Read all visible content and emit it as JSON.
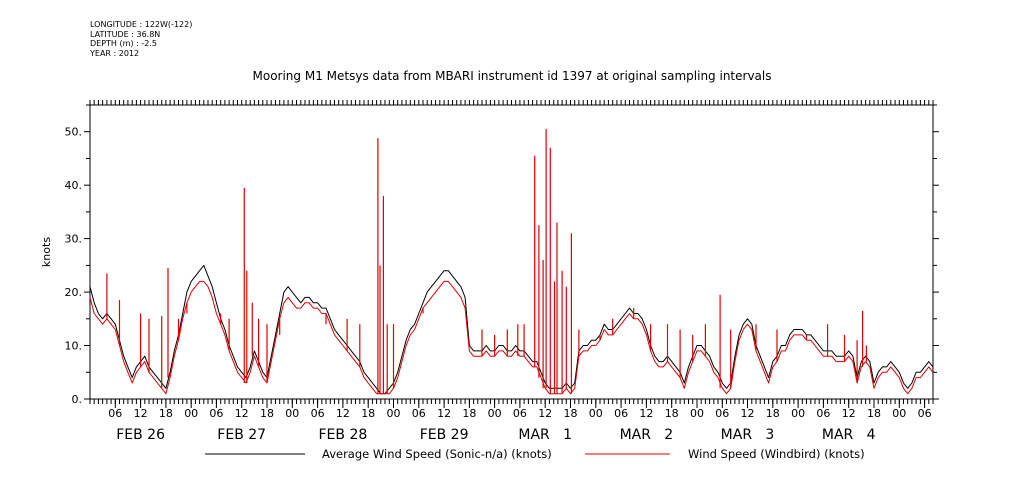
{
  "metadata": {
    "longitude": "LONGITUDE : 122W(-122)",
    "latitude": "LATITUDE : 36.8N",
    "depth": "DEPTH (m) : -2.5",
    "year": "YEAR : 2012"
  },
  "chart_data": {
    "type": "line",
    "title": "Mooring M1 Metsys data from MBARI instrument id 1397 at original sampling intervals",
    "ylabel": "knots",
    "xlabel": "",
    "ylim": [
      0,
      55
    ],
    "yticks": [
      0,
      10,
      20,
      30,
      40,
      50
    ],
    "ytick_labels": [
      "0.",
      "10.",
      "20.",
      "30.",
      "40.",
      "50."
    ],
    "xlim_hours": [
      0,
      200
    ],
    "x_units": "hours since 00:00 FEB 26 2012",
    "hour_ticks": [
      {
        "hour": 6,
        "label": "06"
      },
      {
        "hour": 12,
        "label": "12"
      },
      {
        "hour": 18,
        "label": "18"
      },
      {
        "hour": 24,
        "label": "00"
      },
      {
        "hour": 30,
        "label": "06"
      },
      {
        "hour": 36,
        "label": "12"
      },
      {
        "hour": 42,
        "label": "18"
      },
      {
        "hour": 48,
        "label": "00"
      },
      {
        "hour": 54,
        "label": "06"
      },
      {
        "hour": 60,
        "label": "12"
      },
      {
        "hour": 66,
        "label": "18"
      },
      {
        "hour": 72,
        "label": "00"
      },
      {
        "hour": 78,
        "label": "06"
      },
      {
        "hour": 84,
        "label": "12"
      },
      {
        "hour": 90,
        "label": "18"
      },
      {
        "hour": 96,
        "label": "00"
      },
      {
        "hour": 102,
        "label": "06"
      },
      {
        "hour": 108,
        "label": "12"
      },
      {
        "hour": 114,
        "label": "18"
      },
      {
        "hour": 120,
        "label": "00"
      },
      {
        "hour": 126,
        "label": "06"
      },
      {
        "hour": 132,
        "label": "12"
      },
      {
        "hour": 138,
        "label": "18"
      },
      {
        "hour": 144,
        "label": "00"
      },
      {
        "hour": 150,
        "label": "06"
      },
      {
        "hour": 156,
        "label": "12"
      },
      {
        "hour": 162,
        "label": "18"
      },
      {
        "hour": 168,
        "label": "00"
      },
      {
        "hour": 174,
        "label": "06"
      },
      {
        "hour": 180,
        "label": "12"
      },
      {
        "hour": 186,
        "label": "18"
      },
      {
        "hour": 192,
        "label": "00"
      },
      {
        "hour": 198,
        "label": "06"
      }
    ],
    "day_labels": [
      {
        "hour": 12,
        "label": "FEB 26"
      },
      {
        "hour": 36,
        "label": "FEB 27"
      },
      {
        "hour": 60,
        "label": "FEB 28"
      },
      {
        "hour": 84,
        "label": "FEB 29"
      },
      {
        "hour": 108,
        "label": "MAR   1"
      },
      {
        "hour": 132,
        "label": "MAR   2"
      },
      {
        "hour": 156,
        "label": "MAR   3"
      },
      {
        "hour": 180,
        "label": "MAR   4"
      }
    ],
    "series": [
      {
        "name": "Average Wind Speed (Sonic-n/a) (knots)",
        "color": "#000000",
        "x": [
          0,
          1,
          2,
          3,
          4,
          5,
          6,
          7,
          8,
          9,
          10,
          11,
          12,
          13,
          14,
          15,
          16,
          17,
          18,
          19,
          20,
          21,
          22,
          23,
          24,
          25,
          26,
          27,
          28,
          29,
          30,
          31,
          32,
          33,
          34,
          35,
          36,
          37,
          38,
          39,
          40,
          41,
          42,
          43,
          44,
          45,
          46,
          47,
          48,
          49,
          50,
          51,
          52,
          53,
          54,
          55,
          56,
          57,
          58,
          59,
          60,
          61,
          62,
          63,
          64,
          65,
          66,
          67,
          68,
          69,
          70,
          71,
          72,
          73,
          74,
          75,
          76,
          77,
          78,
          79,
          80,
          81,
          82,
          83,
          84,
          85,
          86,
          87,
          88,
          89,
          90,
          91,
          92,
          93,
          94,
          95,
          96,
          97,
          98,
          99,
          100,
          101,
          102,
          103,
          104,
          105,
          106,
          107,
          108,
          109,
          110,
          111,
          112,
          113,
          114,
          115,
          116,
          117,
          118,
          119,
          120,
          121,
          122,
          123,
          124,
          125,
          126,
          127,
          128,
          129,
          130,
          131,
          132,
          133,
          134,
          135,
          136,
          137,
          138,
          139,
          140,
          141,
          142,
          143,
          144,
          145,
          146,
          147,
          148,
          149,
          150,
          151,
          152,
          153,
          154,
          155,
          156,
          157,
          158,
          159,
          160,
          161,
          162,
          163,
          164,
          165,
          166,
          167,
          168,
          169,
          170,
          171,
          172,
          173,
          174,
          175,
          176,
          177,
          178,
          179,
          180,
          181,
          182,
          183,
          184,
          185,
          186,
          187,
          188,
          189,
          190,
          191,
          192,
          193,
          194,
          195,
          196,
          197,
          198,
          199,
          200
        ],
        "values": [
          21,
          18,
          16,
          15,
          16,
          15,
          14,
          11,
          8,
          6,
          4,
          6,
          7,
          8,
          6,
          5,
          4,
          3,
          2,
          5,
          9,
          12,
          16,
          20,
          22,
          23,
          24,
          25,
          23,
          21,
          18,
          15,
          13,
          10,
          8,
          6,
          5,
          4,
          6,
          9,
          7,
          5,
          4,
          8,
          12,
          16,
          20,
          21,
          20,
          19,
          18,
          19,
          19,
          18,
          18,
          17,
          17,
          15,
          13,
          12,
          11,
          10,
          9,
          8,
          7,
          5,
          4,
          3,
          2,
          1,
          1,
          2,
          3,
          5,
          8,
          11,
          13,
          14,
          16,
          18,
          20,
          21,
          22,
          23,
          24,
          24,
          23,
          22,
          21,
          19,
          10,
          9,
          9,
          9,
          10,
          9,
          9,
          10,
          10,
          9,
          9,
          10,
          9,
          9,
          8,
          7,
          7,
          5,
          3,
          2,
          2,
          2,
          2,
          3,
          2,
          3,
          9,
          10,
          10,
          11,
          11,
          12,
          14,
          13,
          13,
          14,
          15,
          16,
          17,
          16,
          16,
          15,
          13,
          10,
          8,
          7,
          7,
          8,
          7,
          6,
          5,
          3,
          6,
          8,
          10,
          10,
          9,
          8,
          6,
          5,
          3,
          2,
          3,
          8,
          12,
          14,
          15,
          14,
          10,
          8,
          6,
          4,
          7,
          8,
          10,
          10,
          12,
          13,
          13,
          13,
          12,
          12,
          11,
          10,
          9,
          9,
          9,
          8,
          8,
          8,
          9,
          8,
          4,
          7,
          8,
          7,
          3,
          5,
          6,
          6,
          7,
          6,
          5,
          3,
          2,
          3,
          5,
          5,
          6,
          7,
          6
        ]
      },
      {
        "name": "Wind Speed (Windbird) (knots)",
        "color": "#e00000",
        "x": [
          0,
          1,
          2,
          3,
          4,
          5,
          6,
          7,
          8,
          9,
          10,
          11,
          12,
          13,
          14,
          15,
          16,
          17,
          18,
          19,
          20,
          21,
          22,
          23,
          24,
          25,
          26,
          27,
          28,
          29,
          30,
          31,
          32,
          33,
          34,
          35,
          36,
          37,
          38,
          39,
          40,
          41,
          42,
          43,
          44,
          45,
          46,
          47,
          48,
          49,
          50,
          51,
          52,
          53,
          54,
          55,
          56,
          57,
          58,
          59,
          60,
          61,
          62,
          63,
          64,
          65,
          66,
          67,
          68,
          69,
          70,
          71,
          72,
          73,
          74,
          75,
          76,
          77,
          78,
          79,
          80,
          81,
          82,
          83,
          84,
          85,
          86,
          87,
          88,
          89,
          90,
          91,
          92,
          93,
          94,
          95,
          96,
          97,
          98,
          99,
          100,
          101,
          102,
          103,
          104,
          105,
          106,
          107,
          108,
          109,
          110,
          111,
          112,
          113,
          114,
          115,
          116,
          117,
          118,
          119,
          120,
          121,
          122,
          123,
          124,
          125,
          126,
          127,
          128,
          129,
          130,
          131,
          132,
          133,
          134,
          135,
          136,
          137,
          138,
          139,
          140,
          141,
          142,
          143,
          144,
          145,
          146,
          147,
          148,
          149,
          150,
          151,
          152,
          153,
          154,
          155,
          156,
          157,
          158,
          159,
          160,
          161,
          162,
          163,
          164,
          165,
          166,
          167,
          168,
          169,
          170,
          171,
          172,
          173,
          174,
          175,
          176,
          177,
          178,
          179,
          180,
          181,
          182,
          183,
          184,
          185,
          186,
          187,
          188,
          189,
          190,
          191,
          192,
          193,
          194,
          195,
          196,
          197,
          198,
          199,
          200
        ],
        "values": [
          19,
          16,
          15,
          14,
          15,
          14,
          13,
          10,
          7,
          5,
          3,
          5,
          6,
          7,
          5,
          4,
          3,
          2,
          1,
          4,
          8,
          11,
          15,
          18,
          20,
          21,
          22,
          22,
          21,
          19,
          16,
          14,
          12,
          9,
          7,
          5,
          4,
          3,
          5,
          8,
          6,
          4,
          3,
          7,
          11,
          15,
          18,
          19,
          18,
          17,
          17,
          18,
          18,
          17,
          17,
          16,
          16,
          14,
          12,
          11,
          10,
          9,
          8,
          7,
          6,
          4,
          3,
          2,
          1,
          1,
          1,
          1,
          2,
          4,
          7,
          10,
          12,
          13,
          15,
          17,
          18,
          19,
          20,
          21,
          22,
          22,
          21,
          20,
          19,
          17,
          9,
          8,
          8,
          8,
          9,
          8,
          8,
          9,
          9,
          8,
          8,
          9,
          8,
          8,
          7,
          6,
          6,
          4,
          2,
          1,
          1,
          1,
          1,
          2,
          1,
          2,
          8,
          9,
          9,
          10,
          10,
          11,
          13,
          12,
          12,
          13,
          14,
          15,
          16,
          15,
          15,
          14,
          12,
          9,
          7,
          6,
          6,
          7,
          6,
          5,
          4,
          2,
          5,
          7,
          9,
          9,
          8,
          7,
          5,
          4,
          2,
          1,
          2,
          7,
          11,
          13,
          14,
          13,
          9,
          7,
          5,
          3,
          6,
          7,
          9,
          9,
          11,
          12,
          12,
          12,
          11,
          11,
          10,
          9,
          8,
          8,
          8,
          7,
          7,
          7,
          8,
          7,
          3,
          6,
          7,
          6,
          2,
          4,
          5,
          5,
          6,
          5,
          4,
          2,
          1,
          2,
          4,
          4,
          5,
          6,
          5
        ]
      }
    ],
    "spikes": {
      "series": "Wind Speed (Windbird) (knots)",
      "points": [
        {
          "x": 4,
          "y": 23.5
        },
        {
          "x": 7,
          "y": 18.5
        },
        {
          "x": 12,
          "y": 16
        },
        {
          "x": 14,
          "y": 15
        },
        {
          "x": 17,
          "y": 15.5
        },
        {
          "x": 18.5,
          "y": 24.5
        },
        {
          "x": 21,
          "y": 15
        },
        {
          "x": 23,
          "y": 16
        },
        {
          "x": 31,
          "y": 16
        },
        {
          "x": 33,
          "y": 15
        },
        {
          "x": 36.6,
          "y": 39.5
        },
        {
          "x": 37.2,
          "y": 24
        },
        {
          "x": 38.5,
          "y": 18
        },
        {
          "x": 40,
          "y": 15
        },
        {
          "x": 42,
          "y": 14
        },
        {
          "x": 45,
          "y": 12
        },
        {
          "x": 56,
          "y": 14
        },
        {
          "x": 61,
          "y": 15
        },
        {
          "x": 64,
          "y": 14
        },
        {
          "x": 68.3,
          "y": 48.8
        },
        {
          "x": 68.8,
          "y": 25
        },
        {
          "x": 69.6,
          "y": 38
        },
        {
          "x": 70.5,
          "y": 14
        },
        {
          "x": 72,
          "y": 14
        },
        {
          "x": 79,
          "y": 16
        },
        {
          "x": 93,
          "y": 13
        },
        {
          "x": 96,
          "y": 12
        },
        {
          "x": 99,
          "y": 13
        },
        {
          "x": 101.5,
          "y": 14
        },
        {
          "x": 103,
          "y": 14
        },
        {
          "x": 105.5,
          "y": 45.5
        },
        {
          "x": 106.5,
          "y": 32.5
        },
        {
          "x": 107.5,
          "y": 26
        },
        {
          "x": 108.2,
          "y": 50.5
        },
        {
          "x": 109.2,
          "y": 47
        },
        {
          "x": 110.2,
          "y": 22
        },
        {
          "x": 110.8,
          "y": 33
        },
        {
          "x": 112,
          "y": 24
        },
        {
          "x": 113,
          "y": 21
        },
        {
          "x": 114.2,
          "y": 31
        },
        {
          "x": 116,
          "y": 13
        },
        {
          "x": 121,
          "y": 12
        },
        {
          "x": 124,
          "y": 15
        },
        {
          "x": 129,
          "y": 17
        },
        {
          "x": 133,
          "y": 14
        },
        {
          "x": 137,
          "y": 14
        },
        {
          "x": 140,
          "y": 13
        },
        {
          "x": 143,
          "y": 12
        },
        {
          "x": 146,
          "y": 14
        },
        {
          "x": 149.5,
          "y": 19.5
        },
        {
          "x": 152,
          "y": 13
        },
        {
          "x": 158,
          "y": 14
        },
        {
          "x": 163,
          "y": 13
        },
        {
          "x": 170,
          "y": 12
        },
        {
          "x": 175,
          "y": 14
        },
        {
          "x": 179,
          "y": 12
        },
        {
          "x": 182,
          "y": 11
        },
        {
          "x": 183.3,
          "y": 16.5
        },
        {
          "x": 184.2,
          "y": 10
        }
      ]
    },
    "legend_placement": "bottom",
    "grid": false
  }
}
